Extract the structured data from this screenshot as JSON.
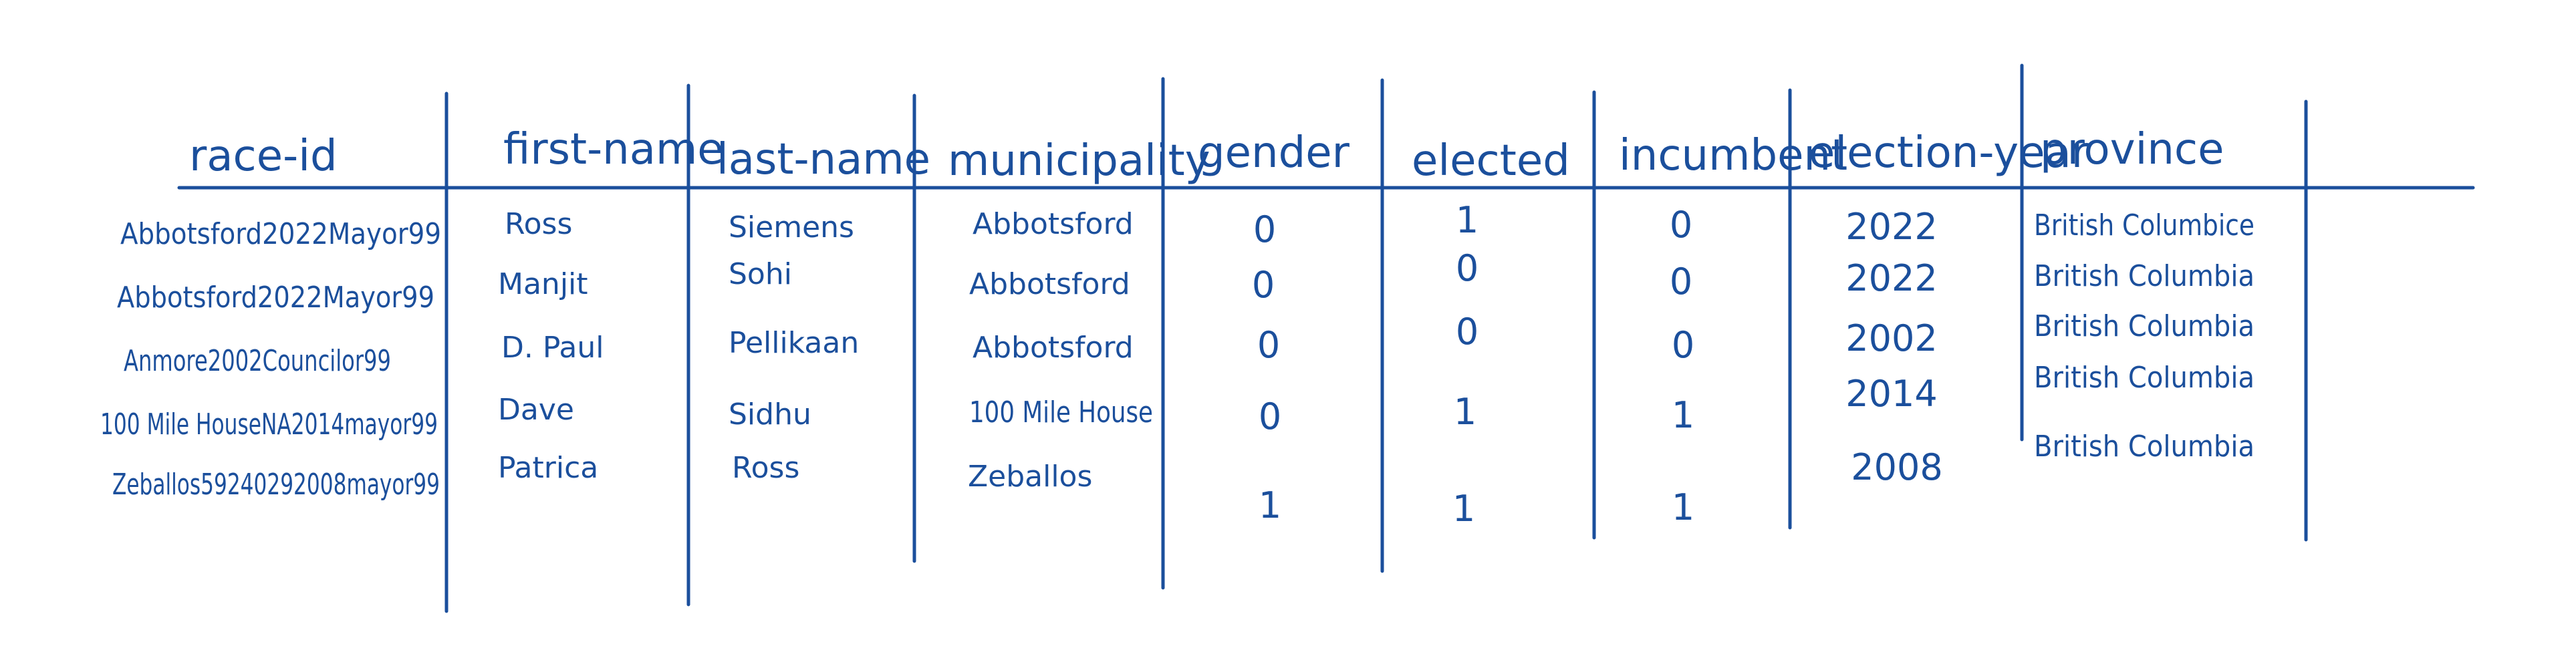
{
  "table": {
    "columns": [
      "race-id",
      "first-name",
      "last-name",
      "municipality",
      "gender",
      "elected",
      "incumbent",
      "election-year",
      "province"
    ],
    "rows": [
      [
        "Abbotsford2022Mayor99",
        "Ross",
        "Siemens",
        "Abbotsford",
        "0",
        "1",
        "0",
        "2022",
        "British Columbice"
      ],
      [
        "Abbotsford2022Mayor99",
        "Manjit",
        "Sohi",
        "Abbotsford",
        "0",
        "0",
        "0",
        "2022",
        "British Columbia"
      ],
      [
        "Anmore2002Councilor99",
        "D. Paul",
        "Pellikaan",
        "Abbotsford",
        "0",
        "0",
        "0",
        "2002",
        "British Columbia"
      ],
      [
        "100 Mile HouseNA2014mayor99",
        "Dave",
        "Sidhu",
        "100 Mile House",
        "0",
        "1",
        "1",
        "2014",
        "British Columbia"
      ],
      [
        "Zeballos59240292008mayor99",
        "Patrica",
        "Ross",
        "Zeballos",
        "1",
        "1",
        "1",
        "2008",
        "British Columbia"
      ]
    ]
  },
  "colors": {
    "ink": "#1b4f9c",
    "paper": "#ffffff"
  }
}
